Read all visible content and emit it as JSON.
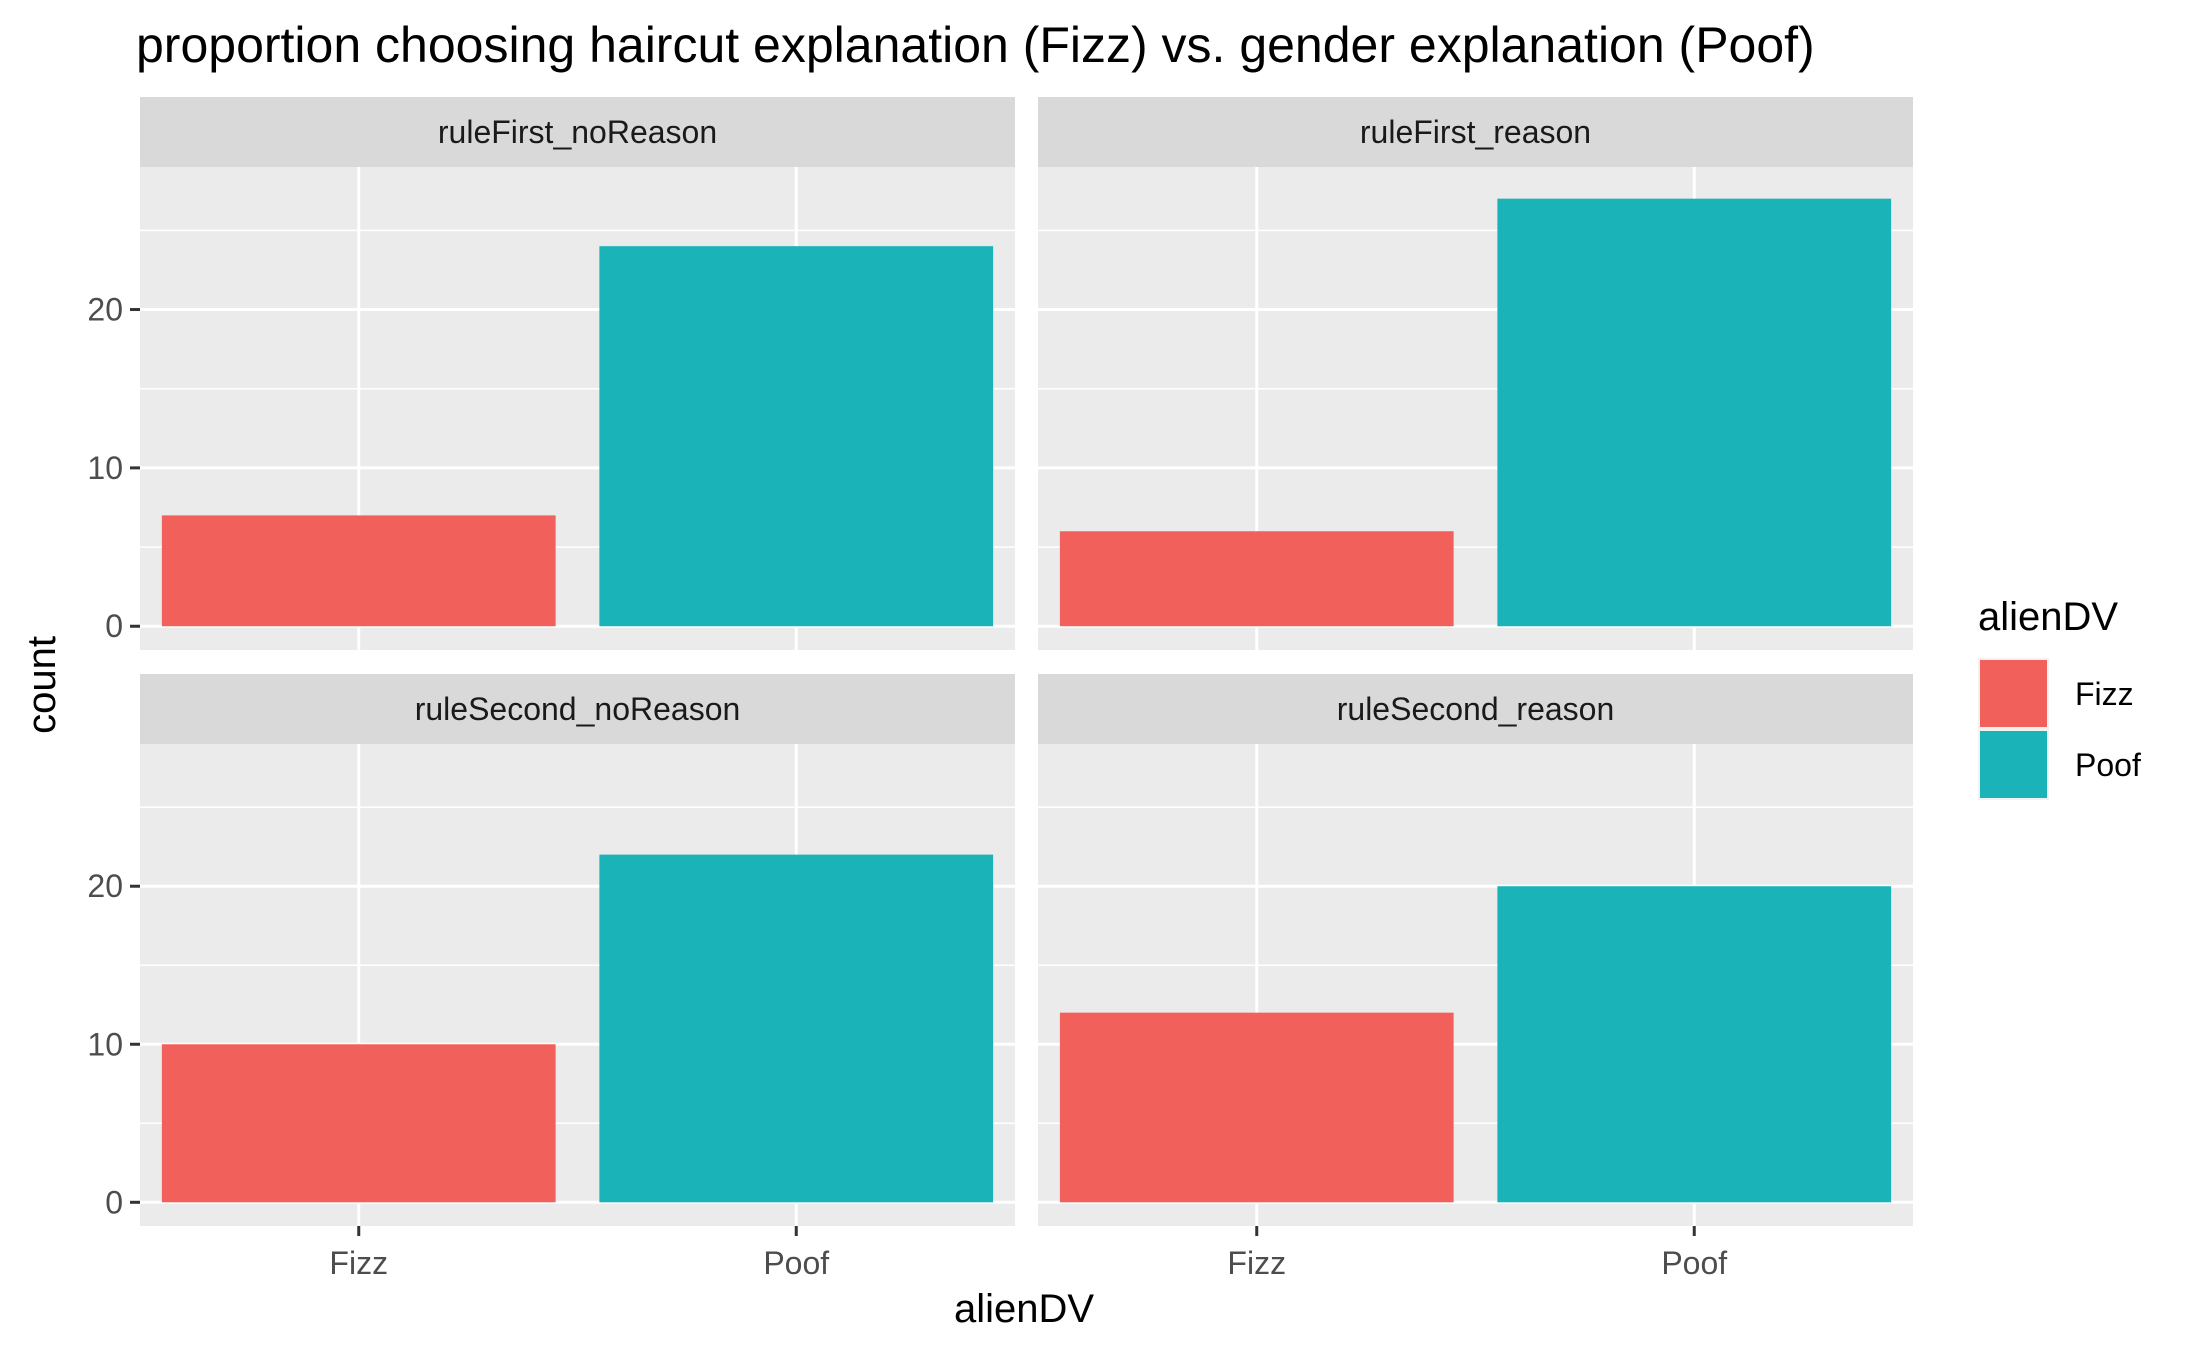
{
  "chart_data": {
    "type": "bar",
    "title": "proportion choosing haircut explanation (Fizz) vs. gender explanation (Poof)",
    "xlabel": "alienDV",
    "ylabel": "count",
    "categories": [
      "Fizz",
      "Poof"
    ],
    "ylim": [
      -1.5,
      29
    ],
    "yticks": [
      0,
      10,
      20
    ],
    "grid": true,
    "legend": {
      "title": "alienDV",
      "position": "right",
      "entries": [
        {
          "label": "Fizz",
          "color": "#F8766D"
        },
        {
          "label": "Poof",
          "color": "#00BFC4"
        }
      ]
    },
    "colors": {
      "Fizz": "#F2605B",
      "Poof": "#1AB3B8"
    },
    "facets": [
      {
        "label": "ruleFirst_noReason",
        "values": [
          7,
          24
        ]
      },
      {
        "label": "ruleFirst_reason",
        "values": [
          6,
          27
        ]
      },
      {
        "label": "ruleSecond_noReason",
        "values": [
          10,
          22
        ]
      },
      {
        "label": "ruleSecond_reason",
        "values": [
          12,
          20
        ]
      }
    ]
  }
}
